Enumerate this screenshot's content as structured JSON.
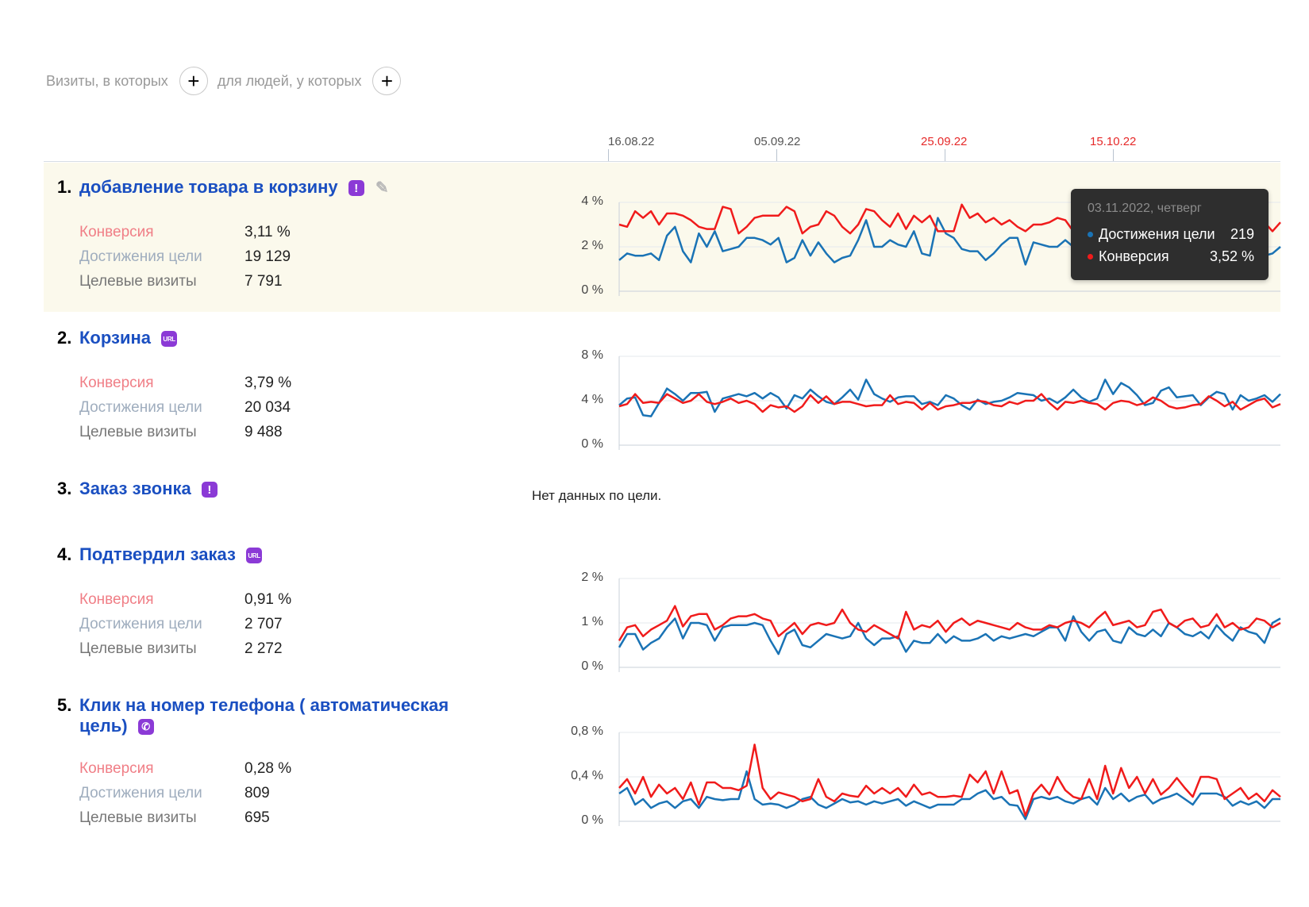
{
  "filters": {
    "visits_label": "Визиты, в которых",
    "people_label": "для людей, у которых",
    "add_symbol": "+"
  },
  "timeline": {
    "dates": [
      {
        "label": "16.08.22",
        "holiday": false
      },
      {
        "label": "05.09.22",
        "holiday": false
      },
      {
        "label": "25.09.22",
        "holiday": true
      },
      {
        "label": "15.10.22",
        "holiday": true
      }
    ]
  },
  "colors": {
    "reach": "#1a73b5",
    "conversion": "#f01b1b",
    "link": "#1a4fc1",
    "badge": "#8b3ad6",
    "highlight": "#fbf9ec"
  },
  "metric_labels": {
    "conversion": "Конверсия",
    "reach": "Достижения цели",
    "visits": "Целевые визиты"
  },
  "goals": [
    {
      "number": "1.",
      "name": "добавление товара в корзину",
      "badge": "!",
      "badge_icon": "exclamation-icon",
      "editable": true,
      "conversion": "3,11 %",
      "reach": "19 129",
      "visits": "7 791",
      "y_ticks": [
        "4 %",
        "2 %",
        "0 %"
      ]
    },
    {
      "number": "2.",
      "name": "Корзина",
      "badge": "URL",
      "badge_icon": "url-icon",
      "conversion": "3,79 %",
      "reach": "20 034",
      "visits": "9 488",
      "y_ticks": [
        "8 %",
        "4 %",
        "0 %"
      ]
    },
    {
      "number": "3.",
      "name": "Заказ звонка",
      "badge": "!",
      "badge_icon": "exclamation-icon",
      "no_data": "Нет данных по цели."
    },
    {
      "number": "4.",
      "name": "Подтвердил заказ",
      "badge": "URL",
      "badge_icon": "url-icon",
      "conversion": "0,91 %",
      "reach": "2 707",
      "visits": "2 272",
      "y_ticks": [
        "2 %",
        "1 %",
        "0 %"
      ]
    },
    {
      "number": "5.",
      "name": "Клик на номер телефона ( автоматическая",
      "name_line2": "цель)",
      "badge": "✆",
      "badge_icon": "phone-icon",
      "conversion": "0,28 %",
      "reach": "809",
      "visits": "695",
      "y_ticks": [
        "0,8 %",
        "0,4 %",
        "0 %"
      ]
    }
  ],
  "tooltip": {
    "date": "03.11.2022, четверг",
    "rows": [
      {
        "label": "Достижения цели",
        "value": "219",
        "color": "#1a73b5"
      },
      {
        "label": "Конверсия",
        "value": "3,52 %",
        "color": "#f01b1b"
      }
    ]
  },
  "chart_data": [
    {
      "type": "line",
      "title": "добавление товара в корзину",
      "ylim": [
        0,
        4
      ],
      "y_unit": "%",
      "x_ticks": [
        "16.08.22",
        "05.09.22",
        "25.09.22",
        "15.10.22"
      ],
      "series": [
        {
          "name": "Конверсия",
          "values": [
            3.0,
            2.9,
            3.6,
            3.3,
            3.6,
            3.0,
            3.5,
            3.5,
            3.4,
            3.2,
            2.9,
            2.8,
            2.8,
            3.8,
            3.7,
            2.6,
            2.9,
            3.3,
            3.4,
            3.4,
            3.4,
            3.8,
            3.6,
            2.6,
            2.9,
            3.0,
            3.6,
            3.4,
            2.9,
            2.6,
            3.0,
            3.7,
            3.6,
            3.2,
            2.9,
            3.5,
            2.8,
            3.4,
            3.1,
            3.4,
            2.7,
            2.7,
            2.7,
            3.9,
            3.3,
            3.5,
            3.1,
            3.3,
            3.0,
            3.2,
            2.9,
            2.7,
            3.0,
            3.0,
            3.1,
            3.3,
            3.2,
            2.7,
            2.6,
            3.0,
            3.5,
            3.6,
            3.5,
            3.4,
            3.52,
            3.4,
            3.3,
            3.5,
            3.2,
            3.1,
            3.3,
            3.4,
            3.5,
            3.6,
            3.3,
            3.4,
            3.1,
            3.6,
            3.2,
            3.0,
            3.3,
            3.1,
            2.7,
            3.1
          ]
        },
        {
          "name": "Достижения цели",
          "values": [
            1.4,
            1.7,
            1.6,
            1.6,
            1.7,
            1.4,
            2.5,
            2.9,
            1.8,
            1.3,
            2.6,
            2.0,
            2.7,
            1.8,
            1.9,
            2.0,
            2.4,
            2.4,
            2.3,
            2.1,
            2.4,
            1.3,
            1.5,
            2.3,
            1.6,
            2.2,
            1.7,
            1.3,
            1.5,
            1.6,
            2.3,
            3.2,
            2.0,
            2.0,
            2.3,
            2.1,
            2.0,
            2.7,
            1.7,
            1.6,
            3.3,
            2.6,
            2.4,
            1.9,
            1.8,
            1.8,
            1.4,
            1.7,
            2.1,
            2.4,
            2.4,
            1.2,
            2.2,
            2.1,
            2.0,
            2.0,
            2.3,
            2.0,
            2.4,
            2.2,
            2.1,
            2.0,
            2.2,
            2.4,
            2.2,
            2.1,
            2.0,
            2.3,
            2.2,
            2.4,
            2.3,
            2.1,
            2.2,
            2.0,
            2.3,
            2.4,
            2.1,
            1.8,
            2.0,
            2.2,
            2.1,
            1.6,
            1.7,
            2.0
          ]
        }
      ]
    },
    {
      "type": "line",
      "title": "Корзина",
      "ylim": [
        0,
        8
      ],
      "y_unit": "%",
      "series": [
        {
          "name": "Конверсия",
          "values": [
            3.5,
            3.7,
            4.6,
            3.8,
            3.9,
            3.8,
            4.6,
            4.2,
            3.8,
            4.0,
            4.6,
            3.9,
            3.7,
            3.9,
            4.2,
            3.8,
            4.0,
            3.7,
            3.0,
            3.6,
            3.4,
            3.5,
            3.0,
            3.5,
            4.5,
            3.8,
            4.4,
            3.7,
            3.9,
            3.9,
            3.7,
            3.5,
            3.6,
            3.6,
            4.5,
            3.7,
            3.9,
            3.8,
            3.2,
            3.8,
            3.2,
            3.5,
            3.6,
            3.8,
            3.8,
            4.0,
            3.9,
            3.6,
            3.5,
            3.9,
            3.7,
            4.0,
            4.0,
            4.6,
            3.8,
            3.2,
            3.9,
            3.8,
            4.0,
            3.8,
            3.7,
            3.2,
            3.8,
            4.0,
            3.9,
            3.6,
            3.8,
            4.3,
            4.0,
            3.5,
            3.3,
            3.4,
            3.6,
            3.7,
            4.4,
            4.0,
            3.5,
            3.9,
            3.2,
            3.6,
            4.0,
            4.2,
            3.4,
            3.7
          ]
        },
        {
          "name": "Достижения цели",
          "values": [
            3.6,
            4.2,
            4.3,
            2.7,
            2.6,
            3.8,
            5.1,
            4.6,
            4.0,
            4.7,
            4.7,
            4.8,
            3.0,
            4.2,
            4.4,
            4.6,
            4.4,
            4.7,
            4.2,
            4.7,
            4.3,
            3.3,
            4.5,
            4.2,
            5.0,
            4.4,
            3.9,
            3.7,
            4.3,
            5.0,
            4.1,
            5.9,
            4.6,
            4.2,
            3.9,
            4.3,
            4.4,
            4.4,
            3.7,
            3.9,
            3.6,
            4.5,
            4.2,
            3.6,
            3.2,
            4.1,
            3.7,
            3.9,
            4.0,
            4.3,
            4.7,
            4.6,
            4.5,
            4.0,
            4.2,
            3.8,
            4.3,
            5.0,
            4.3,
            3.9,
            4.2,
            5.9,
            4.6,
            5.6,
            5.2,
            4.5,
            3.6,
            3.8,
            4.9,
            5.2,
            4.3,
            4.4,
            4.5,
            3.6,
            4.3,
            4.8,
            4.6,
            3.2,
            4.5,
            4.0,
            4.2,
            4.5,
            3.9,
            4.6
          ]
        }
      ]
    },
    {
      "type": "line",
      "title": "Подтвердил заказ",
      "ylim": [
        0,
        2
      ],
      "y_unit": "%",
      "series": [
        {
          "name": "Конверсия",
          "values": [
            0.6,
            0.9,
            0.95,
            0.7,
            0.85,
            0.95,
            1.05,
            1.38,
            0.92,
            1.15,
            1.2,
            1.2,
            0.85,
            0.95,
            1.1,
            1.15,
            1.15,
            1.2,
            1.1,
            1.05,
            0.7,
            0.85,
            1.0,
            0.75,
            0.95,
            1.0,
            0.95,
            1.0,
            1.3,
            1.0,
            0.85,
            0.8,
            0.95,
            0.85,
            0.75,
            0.65,
            1.25,
            0.85,
            0.95,
            0.9,
            1.05,
            0.8,
            1.0,
            1.1,
            0.95,
            1.05,
            1.0,
            0.95,
            0.9,
            0.85,
            1.0,
            0.9,
            0.85,
            0.85,
            0.95,
            0.9,
            1.0,
            1.05,
            1.0,
            0.9,
            1.1,
            1.25,
            0.95,
            1.0,
            1.05,
            0.9,
            0.95,
            1.25,
            1.3,
            1.0,
            0.9,
            1.05,
            1.1,
            0.9,
            0.95,
            1.2,
            0.9,
            1.0,
            0.85,
            0.9,
            1.1,
            1.05,
            0.9,
            1.0
          ]
        },
        {
          "name": "Достижения цели",
          "values": [
            0.45,
            0.75,
            0.75,
            0.4,
            0.55,
            0.65,
            0.9,
            1.1,
            0.65,
            1.0,
            1.0,
            0.95,
            0.6,
            0.9,
            0.95,
            0.95,
            0.95,
            1.0,
            0.95,
            0.6,
            0.3,
            0.75,
            0.85,
            0.5,
            0.45,
            0.6,
            0.75,
            0.7,
            0.65,
            0.7,
            1.0,
            0.65,
            0.5,
            0.65,
            0.65,
            0.7,
            0.35,
            0.6,
            0.55,
            0.55,
            0.75,
            0.55,
            0.7,
            0.6,
            0.6,
            0.65,
            0.75,
            0.6,
            0.7,
            0.65,
            0.7,
            0.75,
            0.7,
            0.8,
            0.9,
            0.9,
            0.6,
            1.15,
            0.8,
            0.6,
            0.8,
            0.85,
            0.6,
            0.55,
            0.9,
            0.75,
            0.7,
            0.85,
            0.7,
            1.0,
            0.9,
            0.75,
            0.7,
            0.8,
            0.65,
            0.95,
            0.75,
            0.6,
            0.9,
            0.8,
            0.75,
            0.55,
            1.0,
            1.1
          ]
        }
      ]
    },
    {
      "type": "line",
      "title": "Клик на номер телефона ( автоматическая цель)",
      "ylim": [
        0,
        0.8
      ],
      "y_unit": "%",
      "series": [
        {
          "name": "Конверсия",
          "values": [
            0.3,
            0.38,
            0.25,
            0.4,
            0.22,
            0.33,
            0.25,
            0.3,
            0.2,
            0.35,
            0.15,
            0.35,
            0.35,
            0.3,
            0.3,
            0.28,
            0.32,
            0.69,
            0.3,
            0.2,
            0.26,
            0.24,
            0.22,
            0.18,
            0.2,
            0.38,
            0.22,
            0.18,
            0.25,
            0.23,
            0.22,
            0.32,
            0.25,
            0.3,
            0.25,
            0.3,
            0.22,
            0.33,
            0.24,
            0.26,
            0.22,
            0.22,
            0.23,
            0.22,
            0.42,
            0.35,
            0.45,
            0.25,
            0.45,
            0.25,
            0.28,
            0.05,
            0.25,
            0.33,
            0.24,
            0.4,
            0.28,
            0.22,
            0.2,
            0.38,
            0.2,
            0.5,
            0.25,
            0.48,
            0.3,
            0.4,
            0.25,
            0.38,
            0.24,
            0.3,
            0.39,
            0.3,
            0.22,
            0.4,
            0.4,
            0.38,
            0.2,
            0.25,
            0.3,
            0.2,
            0.25,
            0.18,
            0.28,
            0.22
          ]
        },
        {
          "name": "Достижения цели",
          "values": [
            0.25,
            0.3,
            0.15,
            0.2,
            0.12,
            0.16,
            0.18,
            0.12,
            0.18,
            0.2,
            0.12,
            0.22,
            0.2,
            0.19,
            0.2,
            0.2,
            0.45,
            0.2,
            0.15,
            0.16,
            0.15,
            0.12,
            0.15,
            0.2,
            0.22,
            0.15,
            0.12,
            0.16,
            0.2,
            0.17,
            0.18,
            0.15,
            0.18,
            0.16,
            0.18,
            0.2,
            0.14,
            0.18,
            0.15,
            0.12,
            0.15,
            0.15,
            0.15,
            0.2,
            0.2,
            0.25,
            0.28,
            0.2,
            0.22,
            0.15,
            0.14,
            0.02,
            0.2,
            0.22,
            0.2,
            0.22,
            0.18,
            0.16,
            0.2,
            0.22,
            0.15,
            0.3,
            0.2,
            0.25,
            0.18,
            0.22,
            0.24,
            0.16,
            0.2,
            0.22,
            0.25,
            0.2,
            0.15,
            0.25,
            0.25,
            0.25,
            0.22,
            0.14,
            0.18,
            0.15,
            0.18,
            0.12,
            0.2,
            0.2
          ]
        }
      ]
    }
  ]
}
